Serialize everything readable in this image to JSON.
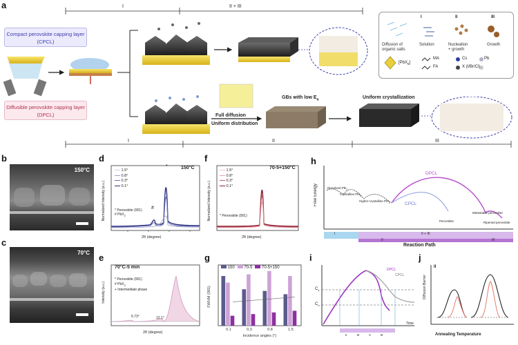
{
  "panels": {
    "a": "a",
    "b": "b",
    "c": "c",
    "d": "d",
    "e": "e",
    "f": "f",
    "g": "g",
    "h": "h",
    "i": "i",
    "j": "j"
  },
  "schematic": {
    "stage_top_I": "I",
    "stage_top_II_III": "II + III",
    "stage_bot_I": "I",
    "stage_bot_II": "II",
    "stage_bot_III": "III",
    "cpcl_line1": "Compact perovskite capping layer",
    "cpcl_line2": "(CPCL)",
    "dpcl_line1": "Diffusible perovskite capping layer",
    "dpcl_line2": "(DPCL)",
    "full_diffusion": "Full diffusion",
    "uniform_distribution": "Uniform distribution",
    "gbs_low_ea": "GBs with low E",
    "gbs_sub": "a",
    "uniform_cryst": "Uniform crystallization"
  },
  "legend": {
    "col_I": "I",
    "col_II": "II",
    "col_III": "III",
    "diffusion": "Diffusion of",
    "organic_salts": "organic salts",
    "solution": "Solution",
    "nucleation": "Nucleation",
    "growth_plus": "+ growth",
    "growth": "Growth",
    "pbx": "[PbX",
    "pbx_sub": "6",
    "pbx_end": "]",
    "ma": "MA",
    "fa": "FA",
    "cs": "Cs",
    "pb": "Pb",
    "x": "X (I/Br/Cl)"
  },
  "panel_b": {
    "temp": "150°C"
  },
  "panel_c": {
    "temp": "70°C"
  },
  "panel_d": {
    "temp": "150°C",
    "ylabel": "Normalized Intensity (a.u.)",
    "xlabel": "2θ (degree)",
    "series": [
      "1.5°",
      "0.8°",
      "0.3°",
      "0.1°"
    ],
    "note1": "* Perovskite (001)",
    "note2": "# PbX",
    "note2_sub": "2",
    "peak_star": "*",
    "peak_hash": "#"
  },
  "panel_e": {
    "title": "70°C-5 min",
    "ylabel": "Intensity (a.u.)",
    "xlabel": "2θ (degree)",
    "note1": "* Perovskite (001)",
    "note2": "# PbX",
    "note2_sub": "2",
    "note3": "+ Intermediate phase",
    "peak1": "6.73°",
    "peak2": "12.1°"
  },
  "panel_f": {
    "temp": "70-5+150°C",
    "ylabel": "Normalized Intensity (a.u.)",
    "xlabel": "2θ (degree)",
    "series": [
      "1.5°",
      "0.8°",
      "0.3°",
      "0.1°"
    ],
    "note1": "* Perovskite (001)"
  },
  "panel_h": {
    "ylabel": "Free Energy",
    "xlabel": "Reaction Path",
    "dpcl": "DPCL",
    "cpcl": "CPCL",
    "l1": "Dissolved PbI",
    "l1_sub": "2",
    "l2": "Crystalline PbI",
    "l2_sub": "2",
    "l3": "Higher-crystalline PbI",
    "l3_sub": "2",
    "l4": "Perovskite",
    "l5": "Metastable perovskite",
    "l6": "Ripened perovskite",
    "bar_I": "I",
    "bar_II_III": "II + III",
    "bar_II": "II",
    "bar_III": "III"
  },
  "panel_i": {
    "dpcl": "DPCL",
    "cpcl": "CPCL",
    "cs": "C",
    "cs_sub": "s",
    "cn": "C",
    "cn_sub": "n",
    "xlabel": "Time",
    "ticks": [
      "II",
      "III",
      "II",
      "III"
    ]
  },
  "panel_j": {
    "ylabel": "Diffusion Barrier",
    "xlabel": "Annealing Temperature",
    "stage": "II"
  },
  "chart_data": [
    {
      "type": "bar",
      "panel": "g",
      "ylabel": "FWHM (001)",
      "xlabel": "Incidence angles (°)",
      "categories": [
        "0.1",
        "0.3",
        "0.8",
        "1.5"
      ],
      "series": [
        {
          "name": "150",
          "values": [
            0.3,
            0.22,
            0.21,
            0.19
          ]
        },
        {
          "name": "70-5",
          "values": [
            0.26,
            0.31,
            0.33,
            0.3
          ]
        },
        {
          "name": "70-5+150",
          "values": [
            0.06,
            0.07,
            0.08,
            0.09
          ]
        }
      ],
      "ylim": [
        0,
        0.35
      ],
      "colors": {
        "150": "#5b5b8c",
        "70-5": "#cda3d6",
        "70-5+150": "#8e2fa3"
      }
    }
  ],
  "colors": {
    "cpcl": "#3a3fa8",
    "dpcl": "#b0304e",
    "accent_purple": "#a03ec0",
    "navy": "#2b2f7a",
    "maroon": "#8a1c2c"
  }
}
